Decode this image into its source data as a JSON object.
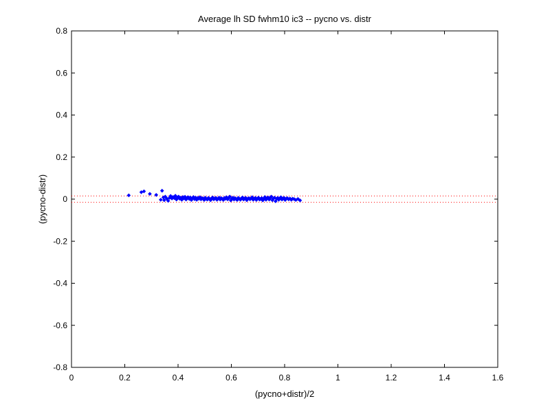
{
  "chart_data": {
    "type": "scatter",
    "title": "Average lh SD fwhm10 ic3 -- pycno vs. distr",
    "xlabel": "(pycno+distr)/2",
    "ylabel": "(pycno-distr)",
    "xlim": [
      0,
      1.6
    ],
    "ylim": [
      -0.8,
      0.8
    ],
    "xticks": [
      0,
      0.2,
      0.4,
      0.6,
      0.8,
      1,
      1.2,
      1.4,
      1.6
    ],
    "xtick_labels": [
      "0",
      "0.2",
      "0.4",
      "0.6",
      "0.8",
      "1",
      "1.2",
      "1.4",
      "1.6"
    ],
    "yticks": [
      -0.8,
      -0.6,
      -0.4,
      -0.2,
      0,
      0.2,
      0.4,
      0.6,
      0.8
    ],
    "ytick_labels": [
      "-0.8",
      "-0.6",
      "-0.4",
      "-0.2",
      "0",
      "0.2",
      "0.4",
      "0.6",
      "0.8"
    ],
    "grid": false,
    "reference_lines": [
      {
        "y": 0.015,
        "style": "dotted",
        "color": "#ff0000"
      },
      {
        "y": -0.015,
        "style": "dotted",
        "color": "#ff0000"
      }
    ],
    "marker_color": "#0000ff",
    "series": [
      {
        "points": [
          [
            0.215,
            0.018
          ],
          [
            0.262,
            0.033
          ],
          [
            0.272,
            0.037
          ],
          [
            0.294,
            0.025
          ],
          [
            0.318,
            0.02
          ],
          [
            0.335,
            -0.003
          ],
          [
            0.34,
            0.04
          ],
          [
            0.345,
            0.008
          ],
          [
            0.348,
            -0.005
          ],
          [
            0.352,
            0.012
          ],
          [
            0.358,
            0.002
          ],
          [
            0.363,
            -0.008
          ],
          [
            0.368,
            0.006
          ],
          [
            0.372,
            0.015
          ],
          [
            0.377,
            0.003
          ],
          [
            0.381,
            0.01
          ],
          [
            0.386,
            0.005
          ],
          [
            0.39,
            0.016
          ],
          [
            0.394,
            -0.002
          ],
          [
            0.398,
            0.008
          ],
          [
            0.402,
            0.012
          ],
          [
            0.406,
            0.002
          ],
          [
            0.41,
            0.007
          ],
          [
            0.414,
            -0.003
          ],
          [
            0.418,
            0.01
          ],
          [
            0.422,
            0.004
          ],
          [
            0.426,
            0.011
          ],
          [
            0.43,
            -0.002
          ],
          [
            0.434,
            0.006
          ],
          [
            0.438,
            0.009
          ],
          [
            0.442,
            0.001
          ],
          [
            0.446,
            0.008
          ],
          [
            0.45,
            -0.004
          ],
          [
            0.454,
            0.005
          ],
          [
            0.458,
            0.01
          ],
          [
            0.462,
            0.0
          ],
          [
            0.466,
            0.007
          ],
          [
            0.47,
            -0.003
          ],
          [
            0.474,
            0.006
          ],
          [
            0.478,
            0.002
          ],
          [
            0.482,
            0.009
          ],
          [
            0.486,
            -0.001
          ],
          [
            0.49,
            0.005
          ],
          [
            0.494,
            0.003
          ],
          [
            0.498,
            -0.004
          ],
          [
            0.502,
            0.007
          ],
          [
            0.506,
            0.001
          ],
          [
            0.51,
            -0.002
          ],
          [
            0.514,
            0.006
          ],
          [
            0.518,
            0.002
          ],
          [
            0.522,
            -0.005
          ],
          [
            0.526,
            0.004
          ],
          [
            0.53,
            0.008
          ],
          [
            0.534,
            -0.001
          ],
          [
            0.538,
            0.003
          ],
          [
            0.542,
            0.006
          ],
          [
            0.546,
            -0.003
          ],
          [
            0.55,
            0.002
          ],
          [
            0.554,
            0.007
          ],
          [
            0.558,
            -0.002
          ],
          [
            0.562,
            0.005
          ],
          [
            0.566,
            0.001
          ],
          [
            0.57,
            -0.004
          ],
          [
            0.574,
            0.006
          ],
          [
            0.578,
            0.002
          ],
          [
            0.582,
            0.009
          ],
          [
            0.586,
            -0.001
          ],
          [
            0.59,
            0.004
          ],
          [
            0.594,
            0.012
          ],
          [
            0.598,
            -0.006
          ],
          [
            0.602,
            0.003
          ],
          [
            0.606,
            0.007
          ],
          [
            0.61,
            -0.002
          ],
          [
            0.614,
            0.005
          ],
          [
            0.618,
            0.0
          ],
          [
            0.622,
            -0.004
          ],
          [
            0.626,
            0.006
          ],
          [
            0.63,
            0.002
          ],
          [
            0.634,
            -0.003
          ],
          [
            0.638,
            0.004
          ],
          [
            0.642,
            0.008
          ],
          [
            0.646,
            -0.002
          ],
          [
            0.65,
            0.003
          ],
          [
            0.654,
            0.006
          ],
          [
            0.658,
            -0.005
          ],
          [
            0.662,
            0.002
          ],
          [
            0.666,
            0.005
          ],
          [
            0.67,
            -0.001
          ],
          [
            0.674,
            0.004
          ],
          [
            0.678,
            0.009
          ],
          [
            0.682,
            -0.003
          ],
          [
            0.686,
            0.002
          ],
          [
            0.69,
            0.006
          ],
          [
            0.694,
            -0.004
          ],
          [
            0.698,
            0.003
          ],
          [
            0.702,
            0.007
          ],
          [
            0.706,
            -0.002
          ],
          [
            0.71,
            0.001
          ],
          [
            0.714,
            0.005
          ],
          [
            0.718,
            -0.006
          ],
          [
            0.722,
            0.003
          ],
          [
            0.726,
            0.01
          ],
          [
            0.73,
            -0.003
          ],
          [
            0.734,
            0.004
          ],
          [
            0.738,
            0.008
          ],
          [
            0.742,
            -0.002
          ],
          [
            0.746,
            0.005
          ],
          [
            0.75,
            0.012
          ],
          [
            0.754,
            -0.005
          ],
          [
            0.758,
            0.003
          ],
          [
            0.762,
            0.007
          ],
          [
            0.766,
            -0.01
          ],
          [
            0.77,
            0.002
          ],
          [
            0.774,
            0.006
          ],
          [
            0.778,
            -0.003
          ],
          [
            0.782,
            0.004
          ],
          [
            0.786,
            0.009
          ],
          [
            0.79,
            -0.002
          ],
          [
            0.794,
            0.003
          ],
          [
            0.798,
            0.006
          ],
          [
            0.802,
            -0.004
          ],
          [
            0.806,
            0.002
          ],
          [
            0.81,
            0.005
          ],
          [
            0.815,
            -0.001
          ],
          [
            0.82,
            0.003
          ],
          [
            0.825,
            -0.003
          ],
          [
            0.83,
            0.002
          ],
          [
            0.836,
            0.0
          ],
          [
            0.842,
            -0.004
          ],
          [
            0.85,
            0.001
          ],
          [
            0.858,
            -0.006
          ]
        ]
      }
    ]
  }
}
